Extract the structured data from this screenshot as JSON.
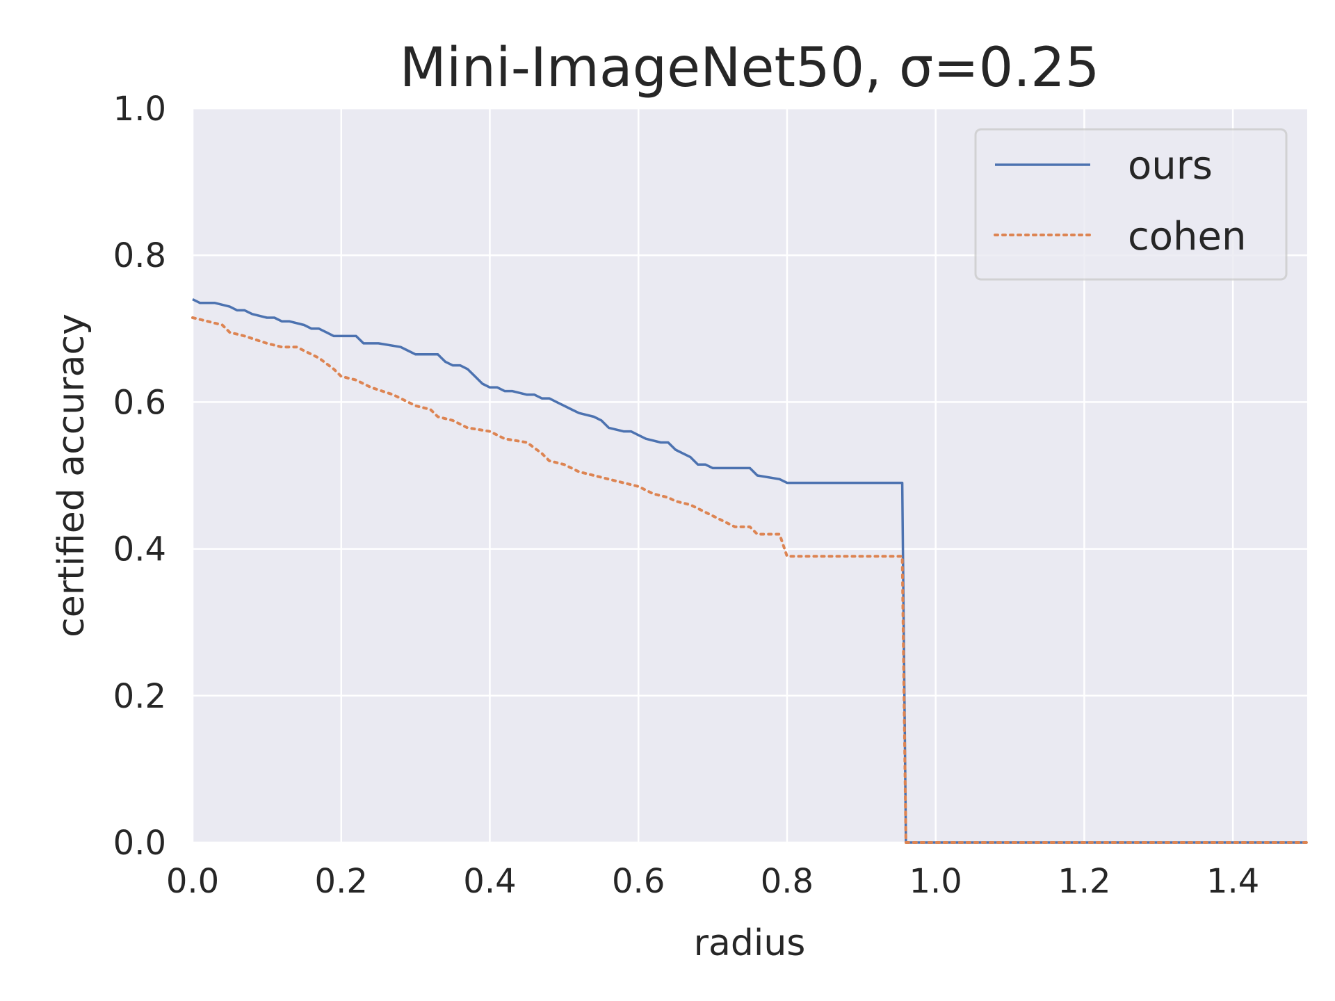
{
  "chart_data": {
    "type": "line",
    "title": "Mini-ImageNet50, σ=0.25",
    "xlabel": "radius",
    "ylabel": "certified accuracy",
    "xlim": [
      0,
      1.5
    ],
    "ylim": [
      0,
      1.0
    ],
    "xticks": [
      "0.0",
      "0.2",
      "0.4",
      "0.6",
      "0.8",
      "1.0",
      "1.2",
      "1.4"
    ],
    "yticks": [
      "0.0",
      "0.2",
      "0.4",
      "0.6",
      "0.8",
      "1.0"
    ],
    "grid": true,
    "background": "#eaeaf2",
    "legend_position": "top-right",
    "series": [
      {
        "name": "ours",
        "color": "#4c72b0",
        "style": "solid",
        "x": [
          0.0,
          0.01,
          0.03,
          0.05,
          0.06,
          0.07,
          0.08,
          0.1,
          0.11,
          0.12,
          0.13,
          0.15,
          0.16,
          0.17,
          0.18,
          0.19,
          0.22,
          0.23,
          0.25,
          0.28,
          0.29,
          0.3,
          0.33,
          0.34,
          0.35,
          0.36,
          0.37,
          0.38,
          0.39,
          0.4,
          0.41,
          0.42,
          0.43,
          0.45,
          0.46,
          0.47,
          0.48,
          0.49,
          0.5,
          0.51,
          0.52,
          0.54,
          0.55,
          0.56,
          0.58,
          0.59,
          0.6,
          0.61,
          0.63,
          0.64,
          0.65,
          0.66,
          0.67,
          0.68,
          0.69,
          0.7,
          0.71,
          0.75,
          0.76,
          0.79,
          0.8,
          0.955,
          0.96,
          1.5
        ],
        "y": [
          0.74,
          0.735,
          0.735,
          0.73,
          0.725,
          0.725,
          0.72,
          0.715,
          0.715,
          0.71,
          0.71,
          0.705,
          0.7,
          0.7,
          0.695,
          0.69,
          0.69,
          0.68,
          0.68,
          0.675,
          0.67,
          0.665,
          0.665,
          0.655,
          0.65,
          0.65,
          0.645,
          0.635,
          0.625,
          0.62,
          0.62,
          0.615,
          0.615,
          0.61,
          0.61,
          0.605,
          0.605,
          0.6,
          0.595,
          0.59,
          0.585,
          0.58,
          0.575,
          0.565,
          0.56,
          0.56,
          0.555,
          0.55,
          0.545,
          0.545,
          0.535,
          0.53,
          0.525,
          0.515,
          0.515,
          0.51,
          0.51,
          0.51,
          0.5,
          0.495,
          0.49,
          0.49,
          0.0,
          0.0
        ]
      },
      {
        "name": "cohen",
        "color": "#dd8452",
        "style": "dotted",
        "x": [
          0.0,
          0.02,
          0.04,
          0.05,
          0.07,
          0.1,
          0.12,
          0.14,
          0.15,
          0.17,
          0.19,
          0.2,
          0.22,
          0.24,
          0.27,
          0.28,
          0.3,
          0.32,
          0.33,
          0.35,
          0.37,
          0.4,
          0.42,
          0.45,
          0.47,
          0.48,
          0.5,
          0.52,
          0.54,
          0.56,
          0.58,
          0.6,
          0.62,
          0.64,
          0.65,
          0.67,
          0.69,
          0.71,
          0.73,
          0.75,
          0.76,
          0.79,
          0.8,
          0.955,
          0.96,
          1.5
        ],
        "y": [
          0.715,
          0.71,
          0.705,
          0.695,
          0.69,
          0.68,
          0.675,
          0.675,
          0.67,
          0.66,
          0.645,
          0.635,
          0.63,
          0.62,
          0.61,
          0.605,
          0.595,
          0.59,
          0.58,
          0.575,
          0.565,
          0.56,
          0.55,
          0.545,
          0.53,
          0.52,
          0.515,
          0.505,
          0.5,
          0.495,
          0.49,
          0.485,
          0.475,
          0.47,
          0.465,
          0.46,
          0.45,
          0.44,
          0.43,
          0.43,
          0.42,
          0.42,
          0.39,
          0.39,
          0.0,
          0.0
        ]
      }
    ]
  }
}
